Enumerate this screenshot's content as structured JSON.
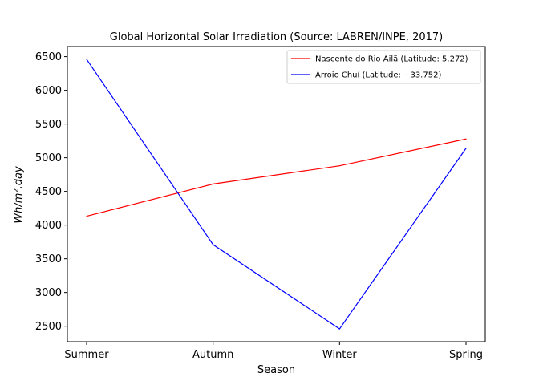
{
  "chart_data": {
    "type": "line",
    "title": "Global Horizontal Solar Irradiation (Source: LABREN/INPE, 2017)",
    "xlabel": "Season",
    "ylabel": "Wh/m².day",
    "categories": [
      "Summer",
      "Autumn",
      "Winter",
      "Spring"
    ],
    "ylim": [
      2270,
      6650
    ],
    "yticks": [
      2500,
      3000,
      3500,
      4000,
      4500,
      5000,
      5500,
      6000,
      6500
    ],
    "grid": false,
    "legend_position": "upper right",
    "series": [
      {
        "name": "Nascente do Rio Ailã (Latitude: 5.272)",
        "color": "#ff0000",
        "values": [
          4132,
          4610,
          4880,
          5278
        ]
      },
      {
        "name": "Arroio Chuí (Latitude: −33.752)",
        "color": "#0000ff",
        "values": [
          6460,
          3710,
          2460,
          5140
        ]
      }
    ]
  }
}
